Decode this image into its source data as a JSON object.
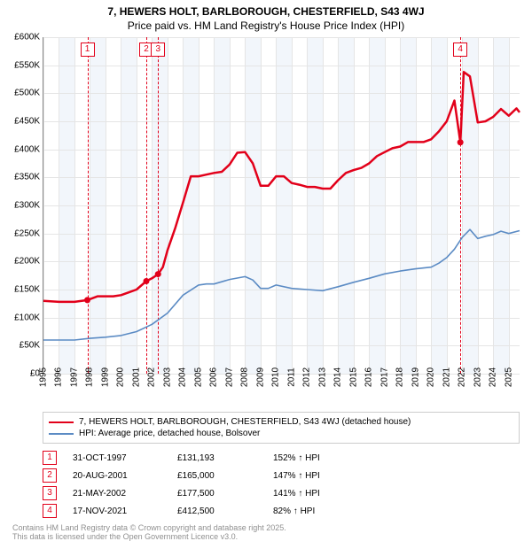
{
  "title": "7, HEWERS HOLT, BARLBOROUGH, CHESTERFIELD, S43 4WJ",
  "subtitle": "Price paid vs. HM Land Registry's House Price Index (HPI)",
  "chart": {
    "type": "line",
    "background_color": "#ffffff",
    "altband_color": "#f2f6fb",
    "grid_color": "#e5e5e5",
    "axis_color": "#888888",
    "y": {
      "min": 0,
      "max": 600000,
      "step": 50000,
      "ticks": [
        "£0",
        "£50K",
        "£100K",
        "£150K",
        "£200K",
        "£250K",
        "£300K",
        "£350K",
        "£400K",
        "£450K",
        "£500K",
        "£550K",
        "£600K"
      ],
      "label_fontsize": 10
    },
    "x": {
      "min": 1995.0,
      "max": 2025.7,
      "ticks": [
        1995,
        1996,
        1997,
        1998,
        1999,
        2000,
        2001,
        2002,
        2003,
        2004,
        2005,
        2006,
        2007,
        2008,
        2009,
        2010,
        2011,
        2012,
        2013,
        2014,
        2015,
        2016,
        2017,
        2018,
        2019,
        2020,
        2021,
        2022,
        2023,
        2024,
        2025
      ],
      "label_fontsize": 10
    },
    "series": [
      {
        "name": "7, HEWERS HOLT, BARLBOROUGH, CHESTERFIELD, S43 4WJ (detached house)",
        "color": "#e2001a",
        "width": 2.5,
        "points": [
          [
            1995.0,
            130000
          ],
          [
            1996.0,
            128000
          ],
          [
            1997.0,
            128000
          ],
          [
            1997.83,
            131193
          ],
          [
            1998.5,
            138000
          ],
          [
            1999.0,
            138000
          ],
          [
            1999.5,
            138000
          ],
          [
            2000.0,
            140000
          ],
          [
            2000.5,
            145000
          ],
          [
            2001.0,
            150000
          ],
          [
            2001.63,
            165000
          ],
          [
            2002.0,
            170000
          ],
          [
            2002.39,
            177500
          ],
          [
            2002.7,
            190000
          ],
          [
            2003.0,
            220000
          ],
          [
            2003.5,
            260000
          ],
          [
            2004.0,
            305000
          ],
          [
            2004.5,
            352000
          ],
          [
            2005.0,
            352000
          ],
          [
            2005.5,
            355000
          ],
          [
            2006.0,
            358000
          ],
          [
            2006.5,
            360000
          ],
          [
            2007.0,
            373000
          ],
          [
            2007.5,
            394000
          ],
          [
            2008.0,
            395000
          ],
          [
            2008.5,
            375000
          ],
          [
            2009.0,
            335000
          ],
          [
            2009.5,
            335000
          ],
          [
            2010.0,
            352000
          ],
          [
            2010.5,
            352000
          ],
          [
            2011.0,
            340000
          ],
          [
            2011.5,
            337000
          ],
          [
            2012.0,
            333000
          ],
          [
            2012.5,
            333000
          ],
          [
            2013.0,
            330000
          ],
          [
            2013.5,
            330000
          ],
          [
            2014.0,
            345000
          ],
          [
            2014.5,
            358000
          ],
          [
            2015.0,
            363000
          ],
          [
            2015.5,
            367000
          ],
          [
            2016.0,
            375000
          ],
          [
            2016.5,
            388000
          ],
          [
            2017.0,
            395000
          ],
          [
            2017.5,
            402000
          ],
          [
            2018.0,
            405000
          ],
          [
            2018.5,
            413000
          ],
          [
            2019.0,
            413000
          ],
          [
            2019.5,
            413000
          ],
          [
            2020.0,
            418000
          ],
          [
            2020.5,
            432000
          ],
          [
            2021.0,
            450000
          ],
          [
            2021.5,
            487000
          ],
          [
            2021.88,
            412500
          ],
          [
            2022.1,
            538000
          ],
          [
            2022.5,
            530000
          ],
          [
            2023.0,
            448000
          ],
          [
            2023.5,
            450000
          ],
          [
            2024.0,
            458000
          ],
          [
            2024.5,
            472000
          ],
          [
            2025.0,
            460000
          ],
          [
            2025.5,
            473000
          ],
          [
            2025.7,
            466000
          ]
        ],
        "markers": [
          [
            1997.83,
            131193
          ],
          [
            2001.63,
            165000
          ],
          [
            2002.39,
            177500
          ],
          [
            2021.88,
            412500
          ]
        ]
      },
      {
        "name": "HPI: Average price, detached house, Bolsover",
        "color": "#5b8bc4",
        "width": 1.6,
        "points": [
          [
            1995.0,
            60000
          ],
          [
            1996.0,
            60000
          ],
          [
            1997.0,
            60000
          ],
          [
            1998.0,
            63000
          ],
          [
            1999.0,
            65000
          ],
          [
            2000.0,
            68000
          ],
          [
            2001.0,
            75000
          ],
          [
            2002.0,
            88000
          ],
          [
            2003.0,
            108000
          ],
          [
            2004.0,
            140000
          ],
          [
            2005.0,
            158000
          ],
          [
            2005.5,
            160000
          ],
          [
            2006.0,
            160000
          ],
          [
            2007.0,
            168000
          ],
          [
            2008.0,
            173000
          ],
          [
            2008.5,
            167000
          ],
          [
            2009.0,
            152000
          ],
          [
            2009.5,
            152000
          ],
          [
            2010.0,
            158000
          ],
          [
            2011.0,
            152000
          ],
          [
            2012.0,
            150000
          ],
          [
            2013.0,
            148000
          ],
          [
            2014.0,
            155000
          ],
          [
            2015.0,
            163000
          ],
          [
            2016.0,
            170000
          ],
          [
            2017.0,
            178000
          ],
          [
            2018.0,
            183000
          ],
          [
            2019.0,
            187000
          ],
          [
            2020.0,
            190000
          ],
          [
            2020.5,
            197000
          ],
          [
            2021.0,
            207000
          ],
          [
            2021.5,
            222000
          ],
          [
            2022.0,
            243000
          ],
          [
            2022.5,
            257000
          ],
          [
            2023.0,
            241000
          ],
          [
            2023.5,
            245000
          ],
          [
            2024.0,
            248000
          ],
          [
            2024.5,
            254000
          ],
          [
            2025.0,
            250000
          ],
          [
            2025.7,
            255000
          ]
        ]
      }
    ],
    "events": [
      {
        "n": "1",
        "x": 1997.83,
        "color": "#e2001a"
      },
      {
        "n": "2",
        "x": 2001.63,
        "color": "#e2001a"
      },
      {
        "n": "3",
        "x": 2002.39,
        "color": "#e2001a"
      },
      {
        "n": "4",
        "x": 2021.88,
        "color": "#e2001a"
      }
    ]
  },
  "legend": [
    {
      "color": "#e2001a",
      "label": "7, HEWERS HOLT, BARLBOROUGH, CHESTERFIELD, S43 4WJ (detached house)"
    },
    {
      "color": "#5b8bc4",
      "label": "HPI: Average price, detached house, Bolsover"
    }
  ],
  "transactions": [
    {
      "n": "1",
      "color": "#e2001a",
      "date": "31-OCT-1997",
      "price": "£131,193",
      "pct": "152% ↑ HPI"
    },
    {
      "n": "2",
      "color": "#e2001a",
      "date": "20-AUG-2001",
      "price": "£165,000",
      "pct": "147% ↑ HPI"
    },
    {
      "n": "3",
      "color": "#e2001a",
      "date": "21-MAY-2002",
      "price": "£177,500",
      "pct": "141% ↑ HPI"
    },
    {
      "n": "4",
      "color": "#e2001a",
      "date": "17-NOV-2021",
      "price": "£412,500",
      "pct": "82% ↑ HPI"
    }
  ],
  "footer1": "Contains HM Land Registry data © Crown copyright and database right 2025.",
  "footer2": "This data is licensed under the Open Government Licence v3.0."
}
